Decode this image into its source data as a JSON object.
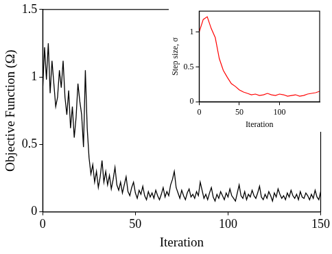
{
  "chart_data": [
    {
      "type": "line",
      "x_label": "Iteration",
      "y_label": "Objective Function (Ω)",
      "x": [
        0,
        1,
        2,
        3,
        4,
        5,
        6,
        7,
        8,
        9,
        10,
        11,
        12,
        13,
        14,
        15,
        16,
        17,
        18,
        19,
        20,
        21,
        22,
        23,
        24,
        25,
        26,
        27,
        28,
        29,
        30,
        31,
        32,
        33,
        34,
        35,
        36,
        37,
        38,
        39,
        40,
        41,
        42,
        43,
        44,
        45,
        46,
        47,
        48,
        49,
        50,
        51,
        52,
        53,
        54,
        55,
        56,
        57,
        58,
        59,
        60,
        61,
        62,
        63,
        64,
        65,
        66,
        67,
        68,
        69,
        70,
        71,
        72,
        73,
        74,
        75,
        76,
        77,
        78,
        79,
        80,
        81,
        82,
        83,
        84,
        85,
        86,
        87,
        88,
        89,
        90,
        91,
        92,
        93,
        94,
        95,
        96,
        97,
        98,
        99,
        100,
        101,
        102,
        103,
        104,
        105,
        106,
        107,
        108,
        109,
        110,
        111,
        112,
        113,
        114,
        115,
        116,
        117,
        118,
        119,
        120,
        121,
        122,
        123,
        124,
        125,
        126,
        127,
        128,
        129,
        130,
        131,
        132,
        133,
        134,
        135,
        136,
        137,
        138,
        139,
        140,
        141,
        142,
        143,
        144,
        145,
        146,
        147,
        148,
        149,
        150
      ],
      "values": [
        0.92,
        1.22,
        0.98,
        1.25,
        0.88,
        1.12,
        0.95,
        0.78,
        0.85,
        1.05,
        0.92,
        1.12,
        0.85,
        0.72,
        0.9,
        0.62,
        0.78,
        0.55,
        0.7,
        0.95,
        0.82,
        0.72,
        0.48,
        1.05,
        0.62,
        0.4,
        0.28,
        0.35,
        0.22,
        0.3,
        0.18,
        0.26,
        0.38,
        0.22,
        0.3,
        0.2,
        0.27,
        0.17,
        0.24,
        0.33,
        0.2,
        0.16,
        0.22,
        0.14,
        0.2,
        0.26,
        0.15,
        0.12,
        0.18,
        0.22,
        0.14,
        0.1,
        0.16,
        0.13,
        0.19,
        0.12,
        0.09,
        0.15,
        0.11,
        0.14,
        0.1,
        0.16,
        0.12,
        0.09,
        0.13,
        0.18,
        0.11,
        0.15,
        0.12,
        0.2,
        0.24,
        0.3,
        0.18,
        0.14,
        0.1,
        0.16,
        0.12,
        0.09,
        0.14,
        0.17,
        0.11,
        0.13,
        0.1,
        0.15,
        0.12,
        0.22,
        0.16,
        0.1,
        0.13,
        0.09,
        0.14,
        0.18,
        0.11,
        0.08,
        0.13,
        0.1,
        0.15,
        0.12,
        0.09,
        0.14,
        0.11,
        0.17,
        0.12,
        0.1,
        0.08,
        0.14,
        0.2,
        0.12,
        0.1,
        0.15,
        0.09,
        0.13,
        0.11,
        0.16,
        0.12,
        0.1,
        0.14,
        0.19,
        0.11,
        0.09,
        0.13,
        0.1,
        0.15,
        0.12,
        0.08,
        0.14,
        0.11,
        0.17,
        0.13,
        0.1,
        0.12,
        0.09,
        0.14,
        0.11,
        0.16,
        0.12,
        0.1,
        0.13,
        0.09,
        0.15,
        0.11,
        0.1,
        0.14,
        0.12,
        0.09,
        0.13,
        0.1,
        0.16,
        0.11,
        0.09,
        0.15
      ],
      "color": "#000000",
      "xlim": [
        0,
        150
      ],
      "ylim": [
        0,
        1.5
      ],
      "xticks": [
        0,
        50,
        100,
        150
      ],
      "yticks": [
        0,
        0.5,
        1,
        1.5
      ],
      "grid": false
    },
    {
      "type": "line",
      "x_label": "Iteration",
      "y_label": "Step size, σ",
      "x": [
        0,
        5,
        10,
        15,
        20,
        25,
        30,
        35,
        40,
        45,
        50,
        55,
        60,
        65,
        70,
        75,
        80,
        85,
        90,
        95,
        100,
        105,
        110,
        115,
        120,
        125,
        130,
        135,
        140,
        145,
        150
      ],
      "values": [
        1.0,
        1.18,
        1.22,
        1.05,
        0.92,
        0.62,
        0.45,
        0.35,
        0.26,
        0.22,
        0.17,
        0.14,
        0.12,
        0.1,
        0.11,
        0.09,
        0.1,
        0.12,
        0.1,
        0.09,
        0.11,
        0.1,
        0.08,
        0.09,
        0.1,
        0.08,
        0.09,
        0.11,
        0.12,
        0.13,
        0.15
      ],
      "color": "#ff0000",
      "xlim": [
        0,
        150
      ],
      "ylim": [
        0,
        1.3
      ],
      "xticks": [
        0,
        50,
        100
      ],
      "yticks": [
        0,
        0.5,
        1
      ],
      "grid": false
    }
  ]
}
